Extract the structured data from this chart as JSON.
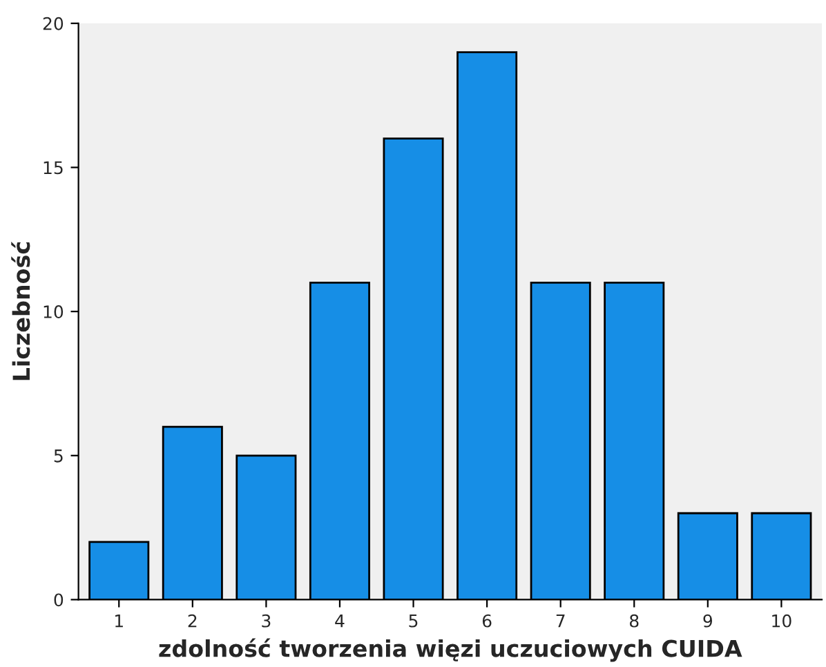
{
  "chart_data": {
    "type": "bar",
    "xlabel": "zdolność tworzenia więzi uczuciowych CUIDA",
    "ylabel": "Liczebność",
    "categories": [
      "1",
      "2",
      "3",
      "4",
      "5",
      "6",
      "7",
      "8",
      "9",
      "10"
    ],
    "values": [
      2,
      6,
      5,
      11,
      16,
      19,
      11,
      11,
      3,
      3
    ],
    "color": "#168ee6",
    "ylim": [
      0,
      20
    ],
    "yticks": [
      0,
      5,
      10,
      15,
      20
    ]
  }
}
